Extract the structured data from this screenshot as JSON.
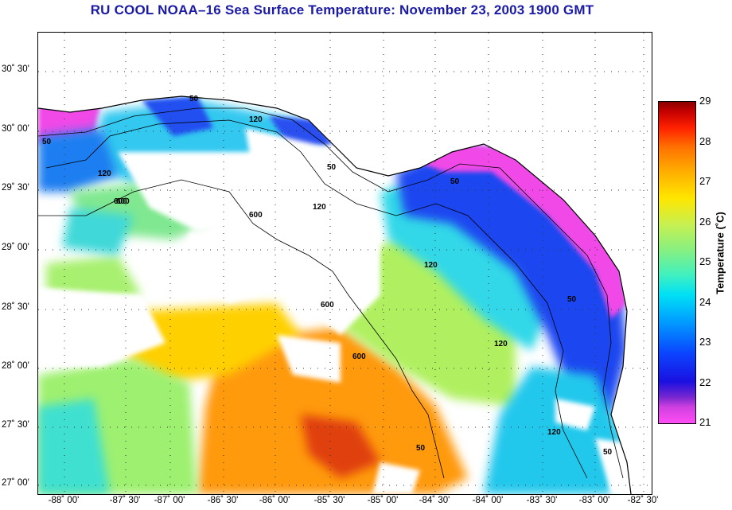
{
  "title": "RU COOL  NOAA–16  Sea Surface Temperature:  November 23, 2003 1900 GMT",
  "lat_labels": [
    "30˚ 30'",
    "30˚ 00'",
    "29˚ 30'",
    "29˚ 00'",
    "28˚ 30'",
    "28˚ 00'",
    "27˚ 30'",
    "27˚ 00'"
  ],
  "lon_labels": [
    "-88˚ 00'",
    "-87˚ 30'",
    "-87˚ 00'",
    "-86˚ 30'",
    "-86˚ 00'",
    "-85˚ 30'",
    "-85˚ 00'",
    "-84˚ 30'",
    "-84˚ 00'",
    "-83˚ 30'",
    "-83˚ 00'",
    "-82˚ 30'"
  ],
  "colorbar": {
    "label": "Temperature (˚C)",
    "ticks": [
      "29",
      "28",
      "27",
      "26",
      "25",
      "24",
      "23",
      "22",
      "21"
    ],
    "min": 21,
    "max": 29
  },
  "isobath_labels": [
    "50",
    "120",
    "600",
    "50",
    "120",
    "50",
    "120",
    "600",
    "600",
    "50",
    "120",
    "600",
    "50",
    "120",
    "50",
    "120",
    "600",
    "50"
  ],
  "colors": {
    "title": "#1a1aa6",
    "cold_magenta": "#ff4df5",
    "blue": "#0b46ff",
    "cyan": "#00d8f0",
    "green": "#9ef070",
    "yellow": "#ffd000",
    "orange": "#ff8c00",
    "red": "#d02000"
  }
}
